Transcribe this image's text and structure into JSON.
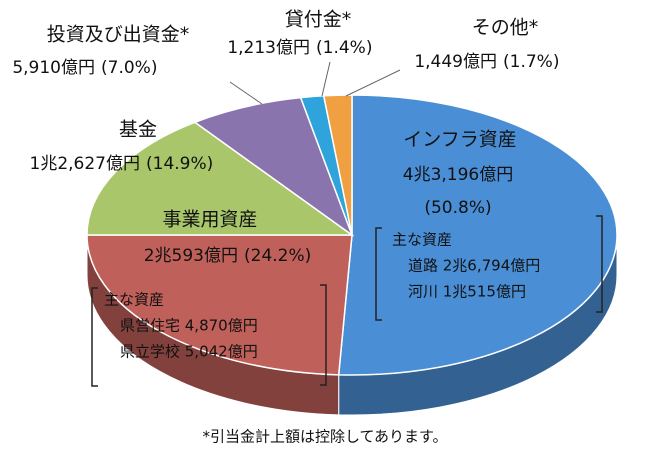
{
  "chart_data": {
    "type": "pie",
    "categories": [
      "インフラ資産",
      "事業用資産",
      "基金",
      "投資及び出資金*",
      "貸付金*",
      "その他*"
    ],
    "values": [
      50.8,
      24.2,
      14.9,
      7.0,
      1.4,
      1.7
    ],
    "value_labels": [
      "(50.8%)",
      "(24.2%)",
      "(14.9%)",
      "(7.0%)",
      "(1.4%)",
      "(1.7%)"
    ],
    "amounts": [
      "4兆3,196億円",
      "2兆593億円",
      "1兆2,627億円",
      "5,910億円",
      "1,213億円",
      "1,449億円"
    ],
    "colors": [
      "#4a8fd6",
      "#c0605a",
      "#a9c66a",
      "#8a74ad",
      "#2fa3dc",
      "#f0a040"
    ],
    "sub_notes": [
      {
        "title": "主な資産",
        "items": [
          "道路 2兆6,794億円",
          "河川 1兆515億円"
        ]
      },
      {
        "title": "主な資産",
        "items": [
          "県営住宅 4,870億円",
          "県立学校 5,042億円"
        ]
      }
    ],
    "footnote": "*引当金計上額は控除してあります。"
  }
}
